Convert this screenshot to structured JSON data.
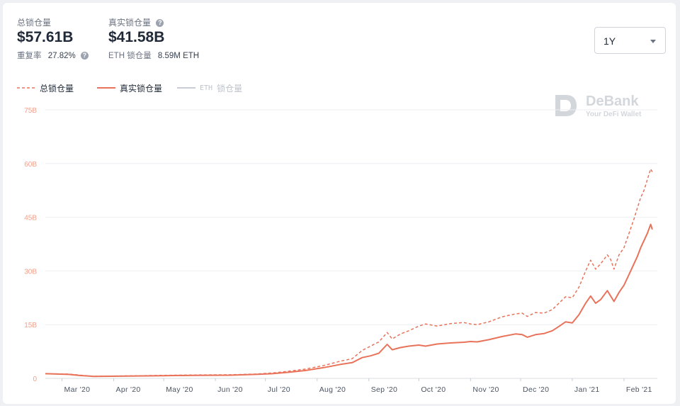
{
  "header": {
    "tvl_label": "总锁仓量",
    "tvl_value": "$57.61B",
    "overlap_label": "重复率",
    "overlap_value": "27.82%",
    "real_label": "真实锁仓量",
    "real_value": "$41.58B",
    "eth_label": "ETH 锁仓量",
    "eth_value": "8.59M ETH"
  },
  "range_select": {
    "value": "1Y"
  },
  "legend": {
    "total": "总锁仓量",
    "real": "真实锁仓量",
    "eth_prefix": "ETH",
    "eth_suffix": "锁仓量"
  },
  "watermark": {
    "brand": "DeBank",
    "tagline": "Your DeFi Wallet"
  },
  "colors": {
    "accent": "#e8735a",
    "grid": "#eceef1",
    "eth": "#c9cdd3"
  },
  "chart_data": {
    "type": "line",
    "y_ticks": [
      "0",
      "15B",
      "30B",
      "45B",
      "60B",
      "75B"
    ],
    "ylim": [
      0,
      75
    ],
    "x_ticks": [
      "Mar '20",
      "Apr '20",
      "May '20",
      "Jun '20",
      "Jul '20",
      "Aug '20",
      "Sep '20",
      "Oct '20",
      "Nov '20",
      "Dec '20",
      "Jan '21",
      "Feb '21"
    ],
    "series": [
      {
        "name": "总锁仓量",
        "style": "dashed",
        "points": [
          [
            "2020-02-20",
            1.3
          ],
          [
            "2020-03-05",
            1.2
          ],
          [
            "2020-03-12",
            0.9
          ],
          [
            "2020-03-20",
            0.6
          ],
          [
            "2020-04-10",
            0.7
          ],
          [
            "2020-05-01",
            0.85
          ],
          [
            "2020-05-20",
            0.95
          ],
          [
            "2020-06-10",
            1.0
          ],
          [
            "2020-06-25",
            1.2
          ],
          [
            "2020-07-05",
            1.5
          ],
          [
            "2020-07-15",
            2.0
          ],
          [
            "2020-07-25",
            2.6
          ],
          [
            "2020-08-05",
            3.6
          ],
          [
            "2020-08-15",
            4.8
          ],
          [
            "2020-08-22",
            5.5
          ],
          [
            "2020-08-28",
            7.8
          ],
          [
            "2020-09-02",
            9.0
          ],
          [
            "2020-09-07",
            10.2
          ],
          [
            "2020-09-12",
            12.8
          ],
          [
            "2020-09-15",
            11.0
          ],
          [
            "2020-09-20",
            12.4
          ],
          [
            "2020-09-25",
            13.3
          ],
          [
            "2020-10-01",
            14.6
          ],
          [
            "2020-10-05",
            15.2
          ],
          [
            "2020-10-12",
            14.6
          ],
          [
            "2020-10-20",
            15.3
          ],
          [
            "2020-10-28",
            15.6
          ],
          [
            "2020-11-01",
            15.2
          ],
          [
            "2020-11-05",
            15.0
          ],
          [
            "2020-11-12",
            15.8
          ],
          [
            "2020-11-20",
            17.2
          ],
          [
            "2020-11-28",
            18.0
          ],
          [
            "2020-12-02",
            18.2
          ],
          [
            "2020-12-05",
            17.3
          ],
          [
            "2020-12-10",
            18.4
          ],
          [
            "2020-12-15",
            18.2
          ],
          [
            "2020-12-20",
            19.2
          ],
          [
            "2020-12-24",
            21.0
          ],
          [
            "2020-12-28",
            22.8
          ],
          [
            "2021-01-01",
            22.5
          ],
          [
            "2021-01-05",
            25.5
          ],
          [
            "2021-01-09",
            30.0
          ],
          [
            "2021-01-12",
            33.0
          ],
          [
            "2021-01-15",
            30.5
          ],
          [
            "2021-01-18",
            32.0
          ],
          [
            "2021-01-22",
            34.5
          ],
          [
            "2021-01-24",
            33.2
          ],
          [
            "2021-01-26",
            30.5
          ],
          [
            "2021-01-29",
            34.5
          ],
          [
            "2021-02-01",
            36.5
          ],
          [
            "2021-02-04",
            40.5
          ],
          [
            "2021-02-07",
            44.5
          ],
          [
            "2021-02-09",
            47.5
          ],
          [
            "2021-02-11",
            50.5
          ],
          [
            "2021-02-13",
            52.5
          ],
          [
            "2021-02-15",
            55.5
          ],
          [
            "2021-02-17",
            58.5
          ],
          [
            "2021-02-18",
            57.6
          ]
        ]
      },
      {
        "name": "真实锁仓量",
        "style": "solid",
        "points": [
          [
            "2020-02-20",
            1.3
          ],
          [
            "2020-03-05",
            1.1
          ],
          [
            "2020-03-12",
            0.8
          ],
          [
            "2020-03-20",
            0.55
          ],
          [
            "2020-04-10",
            0.65
          ],
          [
            "2020-05-01",
            0.75
          ],
          [
            "2020-05-20",
            0.85
          ],
          [
            "2020-06-10",
            0.9
          ],
          [
            "2020-06-25",
            1.1
          ],
          [
            "2020-07-05",
            1.3
          ],
          [
            "2020-07-15",
            1.7
          ],
          [
            "2020-07-25",
            2.2
          ],
          [
            "2020-08-05",
            3.0
          ],
          [
            "2020-08-15",
            3.9
          ],
          [
            "2020-08-22",
            4.4
          ],
          [
            "2020-08-28",
            5.8
          ],
          [
            "2020-09-02",
            6.3
          ],
          [
            "2020-09-07",
            7.0
          ],
          [
            "2020-09-12",
            9.5
          ],
          [
            "2020-09-15",
            8.0
          ],
          [
            "2020-09-20",
            8.6
          ],
          [
            "2020-09-25",
            9.0
          ],
          [
            "2020-10-01",
            9.3
          ],
          [
            "2020-10-05",
            9.0
          ],
          [
            "2020-10-12",
            9.6
          ],
          [
            "2020-10-20",
            9.9
          ],
          [
            "2020-10-28",
            10.1
          ],
          [
            "2020-11-01",
            10.3
          ],
          [
            "2020-11-05",
            10.2
          ],
          [
            "2020-11-12",
            10.8
          ],
          [
            "2020-11-20",
            11.7
          ],
          [
            "2020-11-28",
            12.4
          ],
          [
            "2020-12-02",
            12.2
          ],
          [
            "2020-12-05",
            11.5
          ],
          [
            "2020-12-10",
            12.2
          ],
          [
            "2020-12-15",
            12.5
          ],
          [
            "2020-12-20",
            13.3
          ],
          [
            "2020-12-24",
            14.5
          ],
          [
            "2020-12-28",
            15.8
          ],
          [
            "2021-01-01",
            15.5
          ],
          [
            "2021-01-05",
            17.8
          ],
          [
            "2021-01-09",
            21.0
          ],
          [
            "2021-01-12",
            23.0
          ],
          [
            "2021-01-15",
            21.0
          ],
          [
            "2021-01-18",
            22.0
          ],
          [
            "2021-01-22",
            24.5
          ],
          [
            "2021-01-24",
            23.0
          ],
          [
            "2021-01-26",
            21.5
          ],
          [
            "2021-01-29",
            24.0
          ],
          [
            "2021-02-01",
            26.0
          ],
          [
            "2021-02-04",
            29.0
          ],
          [
            "2021-02-07",
            32.0
          ],
          [
            "2021-02-09",
            34.0
          ],
          [
            "2021-02-11",
            36.5
          ],
          [
            "2021-02-13",
            38.5
          ],
          [
            "2021-02-15",
            40.5
          ],
          [
            "2021-02-17",
            43.0
          ],
          [
            "2021-02-18",
            41.6
          ]
        ]
      }
    ]
  }
}
